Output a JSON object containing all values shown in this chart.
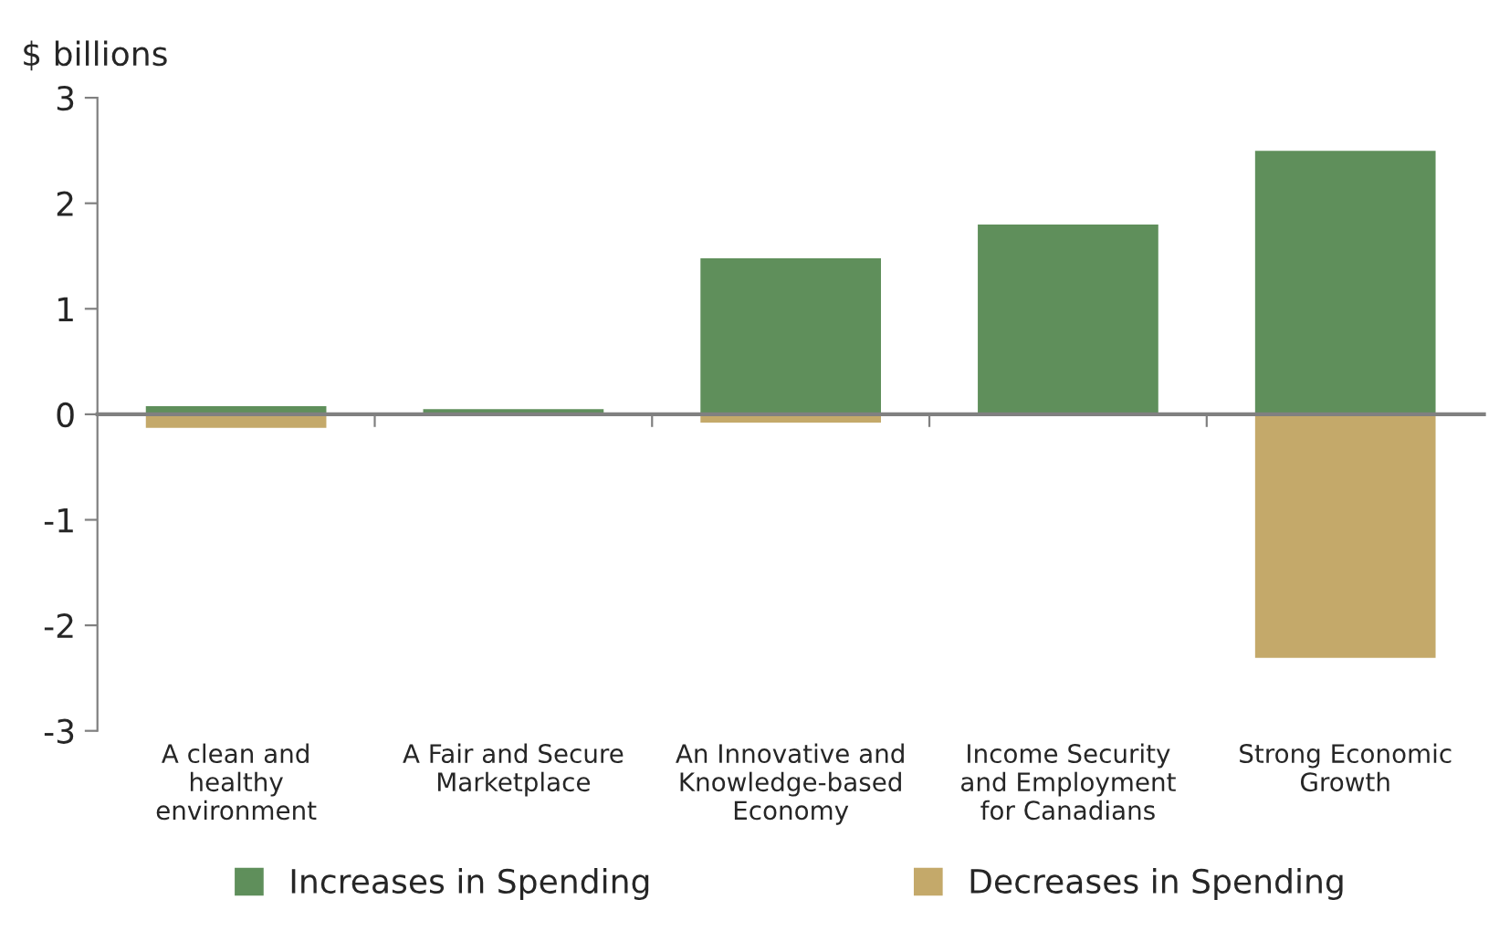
{
  "chart_data": {
    "type": "bar",
    "ylabel": "$ billions",
    "categories": [
      "A clean and healthy environment",
      "A Fair and Secure Marketplace",
      "An Innovative and Knowledge-based Economy",
      "Income Security and Employment for Canadians",
      "Strong Economic Growth"
    ],
    "series": [
      {
        "name": "Increases in Spending",
        "color": "#5f8f5b",
        "values": [
          0.09,
          0.06,
          1.49,
          1.81,
          2.51
        ]
      },
      {
        "name": "Decreases in Spending",
        "color": "#c4a96a",
        "values": [
          -0.14,
          null,
          -0.09,
          null,
          -2.32
        ]
      }
    ],
    "stacked": true,
    "ylim": [
      -3,
      3
    ],
    "yticks": [
      -3,
      -2,
      -1,
      0,
      1,
      2,
      3
    ],
    "legend": "bottom"
  }
}
